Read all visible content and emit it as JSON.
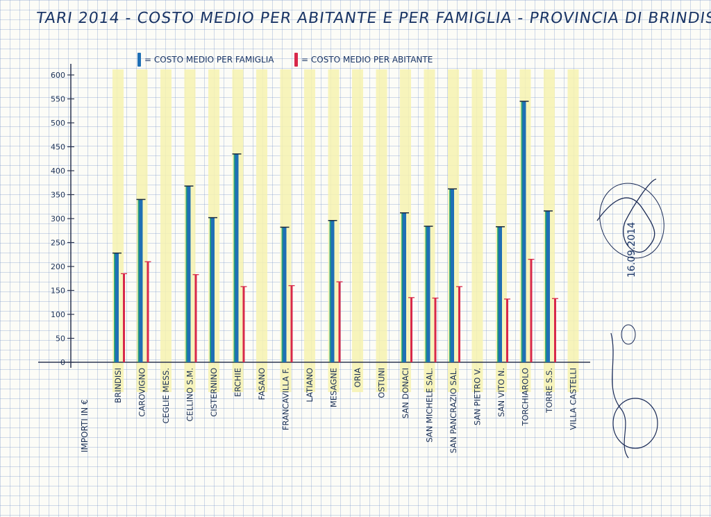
{
  "title": "TARI 2014 - COSTO MEDIO PER ABITANTE E PER FAMIGLIA - PROVINCIA DI BRINDISI",
  "legend": {
    "family_label": "= COSTO MEDIO PER FAMIGLIA",
    "inhabitant_label": "= COSTO MEDIO PER ABITANTE"
  },
  "colors": {
    "family": "#1f6fb5",
    "family_edge": "#1a9e6e",
    "inhabitant": "#d8284a",
    "highlight": "#f6f2b0"
  },
  "signature": {
    "date": "16.09.2014"
  },
  "chart_data": {
    "type": "bar",
    "title": "TARI 2014 - COSTO MEDIO PER ABITANTE E PER FAMIGLIA - PROVINCIA DI BRINDISI",
    "ylabel": "IMPORTI IN €",
    "xlabel": "",
    "ylim": [
      0,
      600
    ],
    "yticks": [
      0,
      50,
      100,
      150,
      200,
      250,
      300,
      350,
      400,
      450,
      500,
      550,
      600
    ],
    "grid": true,
    "legend_position": "top",
    "categories": [
      "BRINDISI",
      "CAROVIGNO",
      "CEGLIE MESS.",
      "CELLINO S.M.",
      "CISTERNINO",
      "ERCHIE",
      "FASANO",
      "FRANCAVILLA F.",
      "LATIANO",
      "MESAGNE",
      "ORIA",
      "OSTUNI",
      "SAN DONACI",
      "SAN MICHELE SAL.",
      "SAN PANCRAZIO SAL.",
      "SAN PIETRO V.",
      "SAN VITO N.",
      "TORCHIAROLO",
      "TORRE S.S.",
      "VILLA CASTELLI"
    ],
    "series": [
      {
        "name": "COSTO MEDIO PER FAMIGLIA",
        "values": [
          228,
          340,
          null,
          368,
          302,
          435,
          null,
          282,
          null,
          296,
          null,
          null,
          312,
          284,
          362,
          null,
          283,
          545,
          316,
          null
        ]
      },
      {
        "name": "COSTO MEDIO PER ABITANTE",
        "values": [
          185,
          210,
          null,
          183,
          null,
          158,
          null,
          160,
          null,
          168,
          null,
          null,
          135,
          134,
          158,
          null,
          132,
          215,
          133,
          null
        ]
      }
    ]
  }
}
